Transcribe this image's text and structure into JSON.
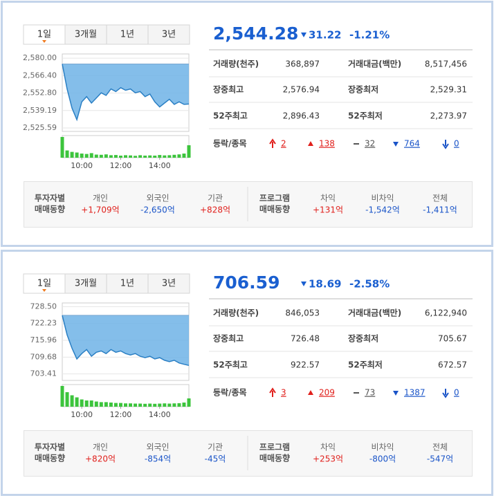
{
  "panels": [
    {
      "tabs": [
        "1일",
        "3개월",
        "1년",
        "3년"
      ],
      "price": "2,544.28",
      "change": "31.22",
      "change_rate": "-1.21%",
      "chart": {
        "type": "line",
        "color": "#2a7fc4",
        "fill": "#6fb3e6",
        "x": [
          9,
          9.25,
          9.5,
          9.75,
          10,
          10.25,
          10.5,
          10.75,
          11,
          11.25,
          11.5,
          11.75,
          12,
          12.25,
          12.5,
          12.75,
          13,
          13.25,
          13.5,
          13.75,
          14,
          14.25,
          14.5,
          14.75,
          15,
          15.25,
          15.5
        ],
        "values": [
          2575.5,
          2556,
          2541,
          2532,
          2546,
          2550,
          2545,
          2549,
          2553,
          2551,
          2556,
          2554,
          2557,
          2555,
          2556,
          2553,
          2554,
          2550,
          2552,
          2546,
          2542,
          2545,
          2548,
          2544,
          2546,
          2544,
          2544.28
        ],
        "reference": 2575.5,
        "xlim": [
          9,
          15.5
        ],
        "xticks": [
          {
            "value": 10,
            "label": "10:00"
          },
          {
            "value": 12,
            "label": "12:00"
          },
          {
            "value": 14,
            "label": "14:00"
          }
        ],
        "ylim": [
          2522.9,
          2583.3
        ],
        "yticks": [
          {
            "value": 2580,
            "label": "2,580.00"
          },
          {
            "value": 2566.4,
            "label": "2,566.40"
          },
          {
            "value": 2552.8,
            "label": "2,552.80"
          },
          {
            "value": 2539.19,
            "label": "2,539.19"
          },
          {
            "value": 2525.59,
            "label": "2,525.59"
          }
        ],
        "volume": [
          100,
          35,
          28,
          25,
          20,
          18,
          22,
          15,
          14,
          16,
          12,
          13,
          10,
          12,
          11,
          9,
          12,
          10,
          11,
          10,
          13,
          11,
          12,
          14,
          16,
          20,
          60
        ],
        "volume_ylim": [
          0,
          100
        ],
        "volume_color": "#3cc43c"
      },
      "stats": [
        [
          {
            "label": "거래량(천주)",
            "value": "368,897"
          },
          {
            "label": "거래대금(백만)",
            "value": "8,517,456"
          }
        ],
        [
          {
            "label": "장중최고",
            "value": "2,576.94"
          },
          {
            "label": "장중최저",
            "value": "2,529.31"
          }
        ],
        [
          {
            "label": "52주최고",
            "value": "2,896.43"
          },
          {
            "label": "52주최저",
            "value": "2,273.97"
          }
        ]
      ],
      "breadth_label": "등락/종목",
      "breadth": [
        "2",
        "138",
        "32",
        "764",
        "0"
      ],
      "investor_label": [
        "투자자별",
        "매매동향"
      ],
      "investors": [
        {
          "label": "개인",
          "value": "+1,709억",
          "color": "#e0201c"
        },
        {
          "label": "외국인",
          "value": "-2,650억",
          "color": "#1a54c8"
        },
        {
          "label": "기관",
          "value": "+828억",
          "color": "#e0201c"
        }
      ],
      "program_label": [
        "프로그램",
        "매매동향"
      ],
      "programs": [
        {
          "label": "차익",
          "value": "+131억",
          "color": "#e0201c"
        },
        {
          "label": "비차익",
          "value": "-1,542억",
          "color": "#1a54c8"
        },
        {
          "label": "전체",
          "value": "-1,411억",
          "color": "#1a54c8"
        }
      ]
    },
    {
      "tabs": [
        "1일",
        "3개월",
        "1년",
        "3년"
      ],
      "price": "706.59",
      "change": "18.69",
      "change_rate": "-2.58%",
      "chart": {
        "type": "line",
        "color": "#2a7fc4",
        "fill": "#6fb3e6",
        "x": [
          9,
          9.25,
          9.5,
          9.75,
          10,
          10.25,
          10.5,
          10.75,
          11,
          11.25,
          11.5,
          11.75,
          12,
          12.25,
          12.5,
          12.75,
          13,
          13.25,
          13.5,
          13.75,
          14,
          14.25,
          14.5,
          14.75,
          15,
          15.25,
          15.5
        ],
        "values": [
          725.28,
          718,
          713,
          709,
          711,
          712.5,
          710,
          711.5,
          712,
          711,
          712.5,
          711.5,
          712,
          711,
          710.5,
          711,
          710,
          709.5,
          710,
          709,
          709.5,
          708.5,
          708,
          708.5,
          707.5,
          707,
          706.59
        ],
        "reference": 725.28,
        "xlim": [
          9,
          15.5
        ],
        "xticks": [
          {
            "value": 10,
            "label": "10:00"
          },
          {
            "value": 12,
            "label": "12:00"
          },
          {
            "value": 14,
            "label": "14:00"
          }
        ],
        "ylim": [
          701,
          729.9
        ],
        "yticks": [
          {
            "value": 728.5,
            "label": "728.50"
          },
          {
            "value": 722.23,
            "label": "722.23"
          },
          {
            "value": 715.96,
            "label": "715.96"
          },
          {
            "value": 709.68,
            "label": "709.68"
          },
          {
            "value": 703.41,
            "label": "703.41"
          }
        ],
        "volume": [
          100,
          70,
          55,
          45,
          35,
          30,
          30,
          25,
          22,
          22,
          20,
          18,
          18,
          16,
          16,
          15,
          15,
          14,
          15,
          14,
          15,
          16,
          15,
          16,
          17,
          20,
          40
        ],
        "volume_ylim": [
          0,
          100
        ],
        "volume_color": "#3cc43c"
      },
      "stats": [
        [
          {
            "label": "거래량(천주)",
            "value": "846,053"
          },
          {
            "label": "거래대금(백만)",
            "value": "6,122,940"
          }
        ],
        [
          {
            "label": "장중최고",
            "value": "726.48"
          },
          {
            "label": "장중최저",
            "value": "705.67"
          }
        ],
        [
          {
            "label": "52주최고",
            "value": "922.57"
          },
          {
            "label": "52주최저",
            "value": "672.57"
          }
        ]
      ],
      "breadth_label": "등락/종목",
      "breadth": [
        "3",
        "209",
        "73",
        "1387",
        "0"
      ],
      "investor_label": [
        "투자자별",
        "매매동향"
      ],
      "investors": [
        {
          "label": "개인",
          "value": "+820억",
          "color": "#e0201c"
        },
        {
          "label": "외국인",
          "value": "-854억",
          "color": "#1a54c8"
        },
        {
          "label": "기관",
          "value": "-45억",
          "color": "#1a54c8"
        }
      ],
      "program_label": [
        "프로그램",
        "매매동향"
      ],
      "programs": [
        {
          "label": "차익",
          "value": "+253억",
          "color": "#e0201c"
        },
        {
          "label": "비차익",
          "value": "-800억",
          "color": "#1a54c8"
        },
        {
          "label": "전체",
          "value": "-547억",
          "color": "#1a54c8"
        }
      ]
    }
  ]
}
